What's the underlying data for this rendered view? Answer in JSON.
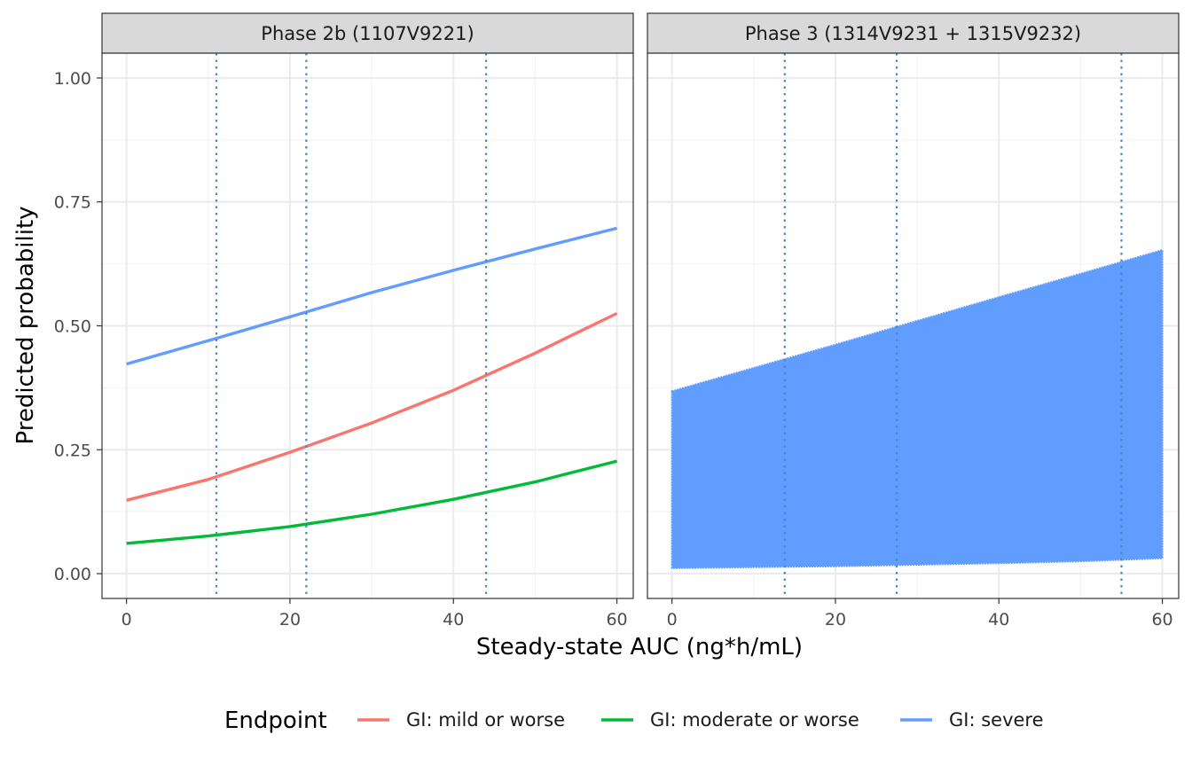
{
  "chart_data": {
    "type": "line",
    "xlabel": "Steady-state AUC (ng*h/mL)",
    "ylabel": "Predicted probability",
    "xlim": [
      -3,
      62
    ],
    "ylim": [
      -0.05,
      1.05
    ],
    "x_ticks": [
      0,
      20,
      40,
      60
    ],
    "y_ticks": [
      0.0,
      0.25,
      0.5,
      0.75,
      1.0
    ],
    "y_tick_labels": [
      "0.00",
      "0.25",
      "0.50",
      "0.75",
      "1.00"
    ],
    "x_tick_labels": [
      "0",
      "20",
      "40",
      "60"
    ],
    "grid": true,
    "legend": {
      "title": "Endpoint",
      "position": "bottom",
      "entries": [
        {
          "label": "GI: mild or worse",
          "color": "#F8766D"
        },
        {
          "label": "GI: moderate or worse",
          "color": "#00BA38"
        },
        {
          "label": "GI: severe",
          "color": "#619CFF"
        }
      ]
    },
    "reference_line_color": "#4A86C8",
    "panels": [
      {
        "strip": "Phase 2b (1107V9221)",
        "vlines": [
          11,
          22,
          44
        ],
        "series": [
          {
            "name": "GI: mild or worse",
            "color": "#F8766D",
            "x": [
              0,
              10,
              20,
              30,
              40,
              50,
              60
            ],
            "y": [
              0.148,
              0.19,
              0.245,
              0.304,
              0.37,
              0.445,
              0.525
            ]
          },
          {
            "name": "GI: moderate or worse",
            "color": "#00BA38",
            "x": [
              0,
              10,
              20,
              30,
              40,
              50,
              60
            ],
            "y": [
              0.061,
              0.076,
              0.095,
              0.12,
              0.15,
              0.185,
              0.227
            ]
          },
          {
            "name": "GI: severe",
            "color": "#619CFF",
            "x": [
              0,
              10,
              20,
              30,
              40,
              50,
              60
            ],
            "y": [
              0.423,
              0.47,
              0.518,
              0.567,
              0.612,
              0.655,
              0.697
            ]
          }
        ]
      },
      {
        "strip": "Phase 3 (1314V9231 + 1315V9232)",
        "vlines": [
          13.8,
          27.5,
          55
        ],
        "band": {
          "name": "GI: severe",
          "color": "#619CFF",
          "x": [
            0,
            10,
            20,
            30,
            40,
            50,
            60
          ],
          "upper": [
            0.368,
            0.415,
            0.462,
            0.51,
            0.558,
            0.605,
            0.653
          ],
          "lower": [
            0.011,
            0.013,
            0.015,
            0.018,
            0.021,
            0.025,
            0.031
          ]
        }
      }
    ]
  }
}
